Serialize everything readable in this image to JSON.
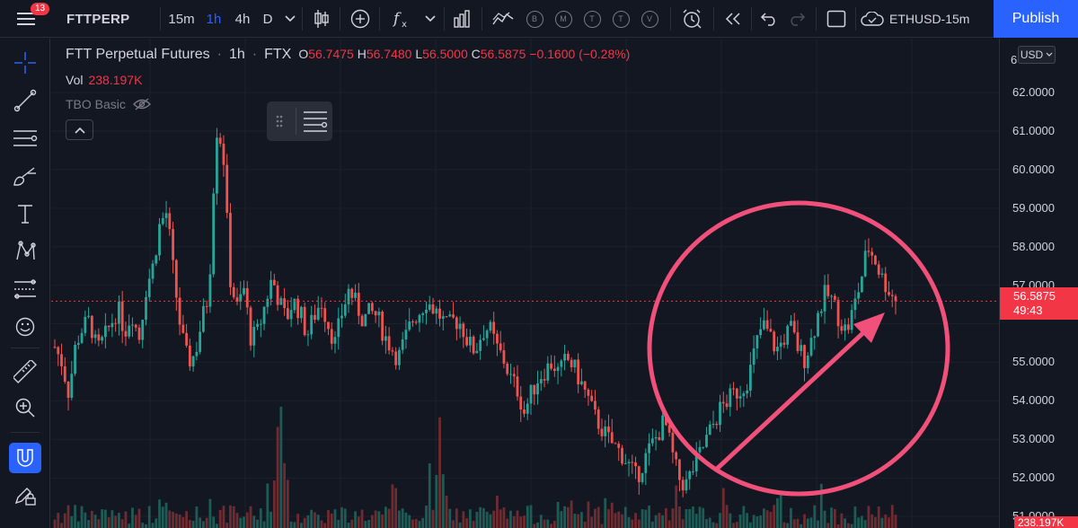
{
  "topbar": {
    "notification_count": "13",
    "symbol": "FTTPERP",
    "timeframes": [
      "15m",
      "1h",
      "4h",
      "D"
    ],
    "active_timeframe": "1h",
    "icons": [
      "hamburger-menu-icon",
      "chevron-down-icon",
      "candles-icon",
      "plus-circle-icon",
      "fx-indicators-icon",
      "chevron-down-icon",
      "bars-icon",
      "strategy-icon",
      "replay-icon",
      "undo-icon",
      "redo-icon",
      "fullscreen-icon",
      "cloud-save-icon"
    ],
    "trading_buttons": [
      "B",
      "M",
      "T",
      "T",
      "V"
    ],
    "layout_name": "ETHUSD-15m",
    "publish_label": "Publish"
  },
  "left_tools": [
    "crosshair-icon",
    "trendline-icon",
    "fib-retracement-icon",
    "brush-icon",
    "text-icon",
    "pattern-icon",
    "prediction-icon",
    "emoji-icon",
    "ruler-icon",
    "zoom-in-icon",
    "magnet-icon",
    "lock-pencil-icon"
  ],
  "legend": {
    "title": "FTT Perpetual Futures",
    "interval": "1h",
    "exchange": "FTX",
    "open_key": "O",
    "open": "56.7475",
    "high_key": "H",
    "high": "56.7480",
    "low_key": "L",
    "low": "56.5000",
    "close_key": "C",
    "close": "56.5875",
    "change": "−0.1600 (−0.28%)",
    "volume_label": "Vol",
    "volume": "238.197K",
    "indicator": "TBO Basic"
  },
  "price_axis": {
    "currency": "USD",
    "top_partial": "6",
    "labels": [
      "62.0000",
      "61.0000",
      "60.0000",
      "59.0000",
      "58.0000",
      "57.0000",
      "55.0000",
      "54.0000",
      "53.0000",
      "52.0000",
      "51.0000"
    ],
    "last_price": "56.5875",
    "countdown": "49:43",
    "volume_badge": "238.197K"
  },
  "colors": {
    "background": "#131722",
    "up": "#26a69a",
    "down": "#ef5350",
    "annotation": "#f0507a",
    "accent": "#2962ff"
  },
  "chart_data": {
    "type": "candlestick",
    "ylim": [
      50.7,
      63.4
    ],
    "close_path": [
      55.4,
      55.0,
      54.2,
      55.5,
      55.9,
      56.1,
      55.3,
      55.6,
      56.0,
      56.4,
      55.8,
      56.3,
      55.6,
      56.9,
      57.5,
      58.6,
      58.9,
      57.2,
      55.8,
      55.0,
      55.2,
      56.1,
      56.8,
      61.1,
      60.6,
      57.2,
      56.4,
      56.9,
      55.6,
      55.8,
      56.5,
      57.2,
      56.6,
      56.1,
      56.6,
      56.3,
      55.7,
      56.2,
      56.6,
      56.0,
      55.5,
      56.3,
      56.9,
      56.5,
      56.1,
      56.3,
      56.2,
      55.7,
      55.4,
      55.1,
      55.6,
      56.1,
      56.3,
      56.6,
      56.4,
      56.2,
      55.9,
      56.1,
      56.0,
      55.5,
      55.3,
      55.8,
      55.9,
      55.4,
      55.1,
      54.6,
      54.3,
      53.7,
      54.2,
      54.6,
      54.8,
      55.0,
      54.7,
      55.1,
      54.9,
      54.5,
      54.1,
      53.6,
      53.3,
      53.0,
      52.8,
      52.6,
      52.3,
      52.0,
      52.4,
      52.8,
      53.1,
      53.5,
      52.7,
      52.0,
      51.8,
      52.2,
      52.6,
      53.0,
      53.4,
      53.8,
      54.0,
      54.2,
      54.3,
      54.6,
      55.4,
      56.0,
      55.7,
      55.3,
      55.6,
      55.9,
      55.4,
      55.1,
      55.6,
      56.3,
      56.8,
      56.6,
      56.1,
      55.8,
      56.4,
      57.1,
      58.0,
      57.7,
      57.2,
      56.9,
      56.6
    ],
    "annotations": [
      "circle",
      "arrow"
    ]
  }
}
